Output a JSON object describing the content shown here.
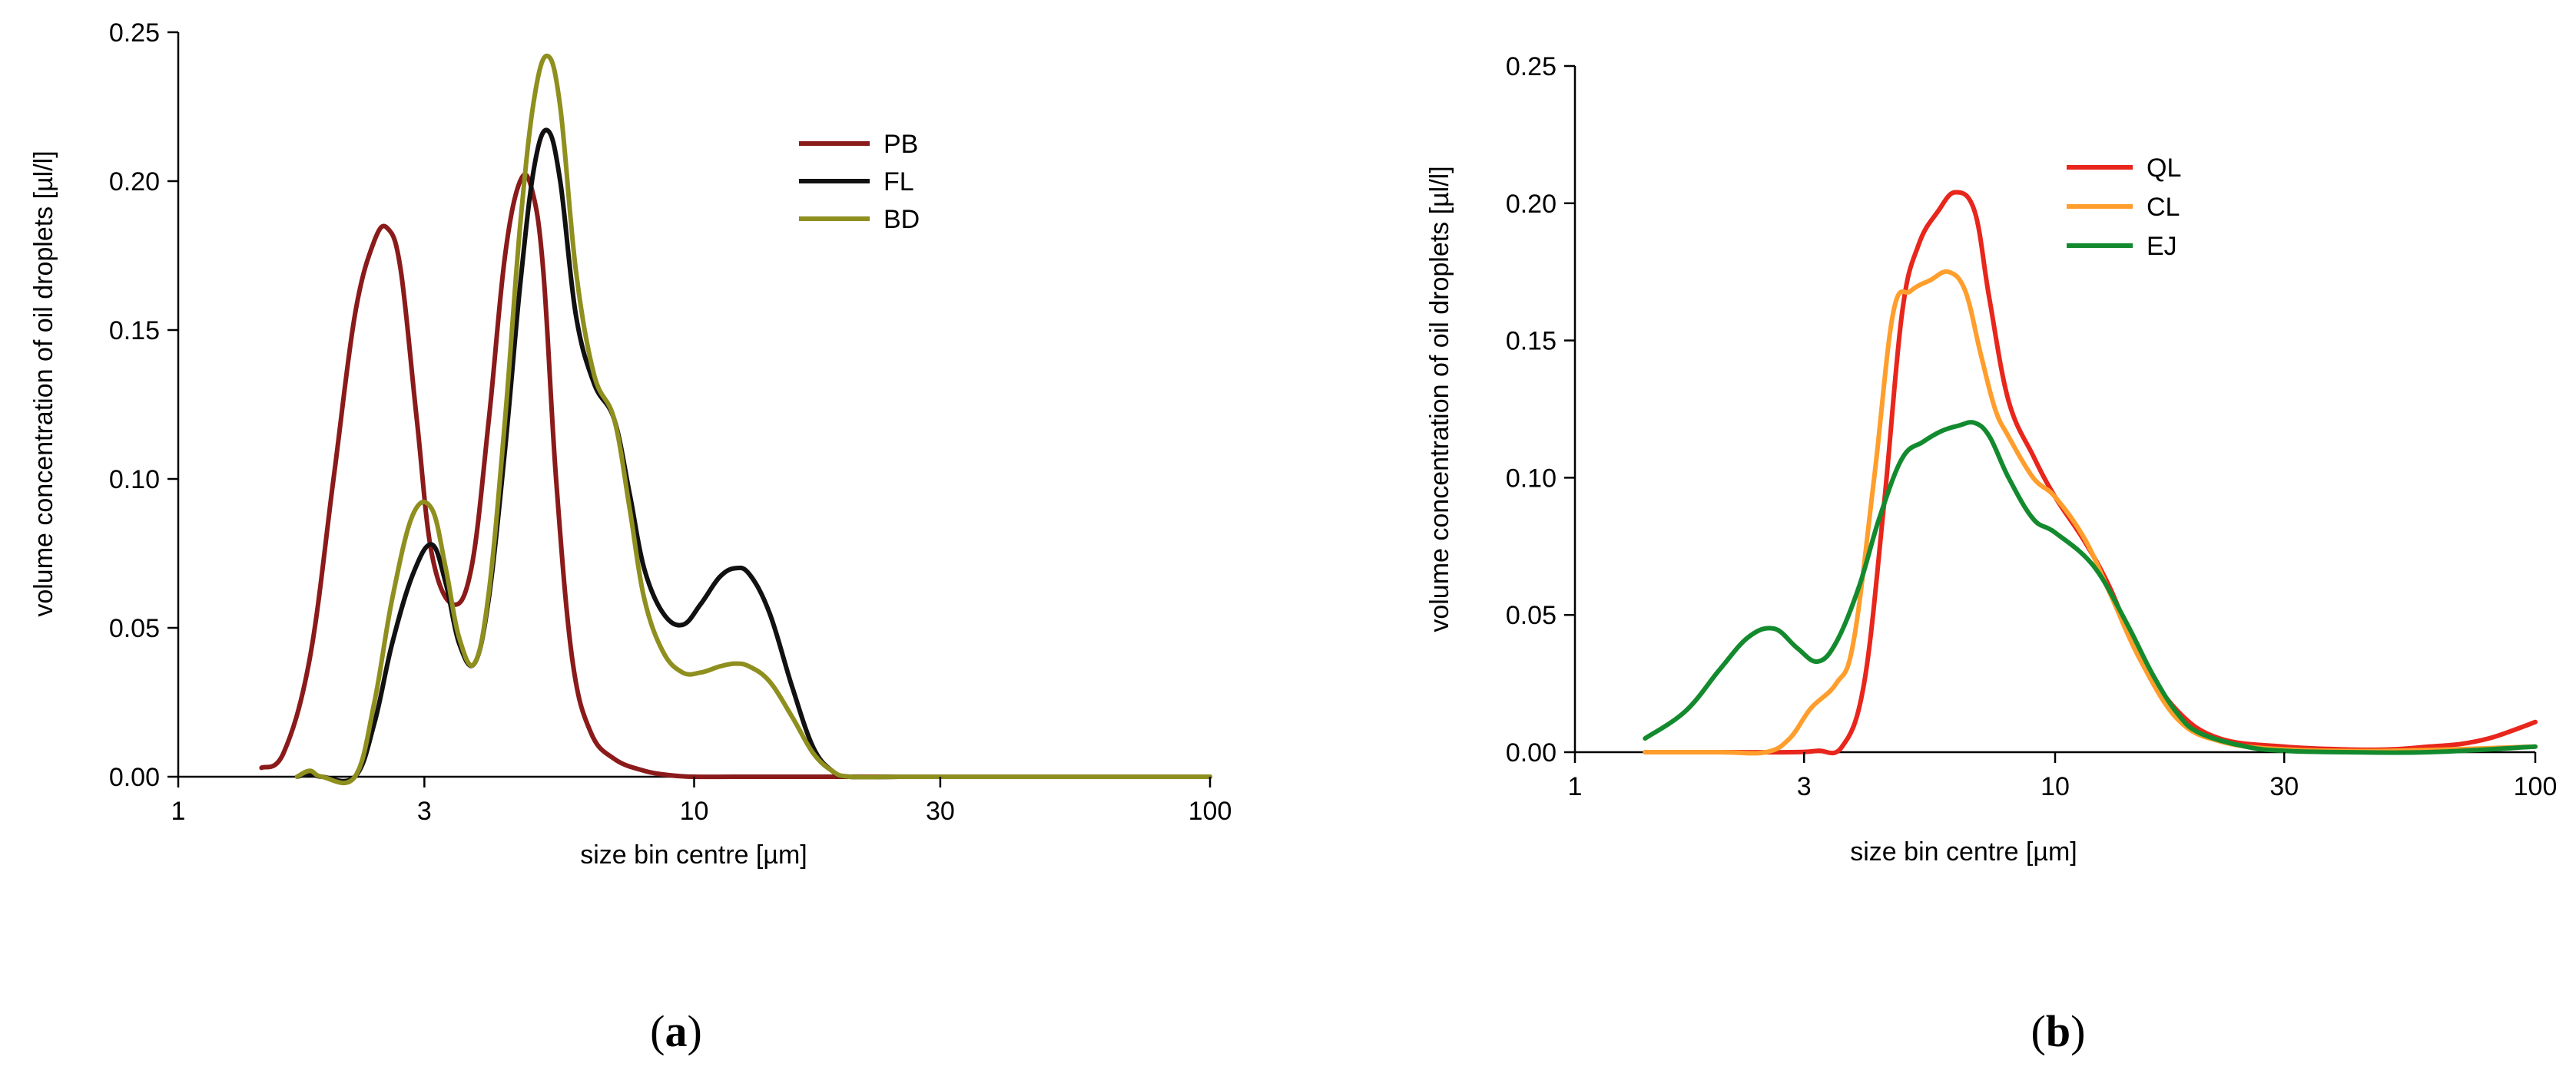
{
  "chart_data": [
    {
      "type": "line",
      "panel_label": "a",
      "xlabel": "size bin centre [µm]",
      "ylabel": "volume concentration of oil droplets [µl/l]",
      "xscale": "log",
      "xlim": [
        1,
        100
      ],
      "ylim": [
        0,
        0.25
      ],
      "x_ticks": [
        1,
        3,
        10,
        30,
        100
      ],
      "x_tick_labels": [
        "1",
        "3",
        "10",
        "30",
        "100"
      ],
      "y_ticks": [
        0,
        0.05,
        0.1,
        0.15,
        0.2,
        0.25
      ],
      "y_tick_labels": [
        "0.00",
        "0.05",
        "0.10",
        "0.15",
        "0.20",
        "0.25"
      ],
      "grid": false,
      "legend_position": "top-right",
      "series": [
        {
          "name": "PB",
          "color": "#8b1a1a",
          "x": [
            1.45,
            1.6,
            1.8,
            2.0,
            2.2,
            2.4,
            2.55,
            2.7,
            2.9,
            3.1,
            3.4,
            3.7,
            4.0,
            4.3,
            4.6,
            4.85,
            5.1,
            5.4,
            5.8,
            6.3,
            7.0,
            8.0,
            9.0,
            10.0,
            12.0,
            15.0,
            20.0,
            30.0,
            50.0,
            100.0
          ],
          "y": [
            0.003,
            0.008,
            0.04,
            0.1,
            0.155,
            0.18,
            0.184,
            0.17,
            0.12,
            0.075,
            0.058,
            0.07,
            0.12,
            0.175,
            0.2,
            0.197,
            0.17,
            0.1,
            0.04,
            0.015,
            0.006,
            0.002,
            0.0005,
            0.0,
            0.0,
            0.0,
            0.0,
            0.0,
            0.0,
            0.0
          ]
        },
        {
          "name": "FL",
          "color": "#111111",
          "x": [
            1.7,
            1.8,
            1.9,
            2.2,
            2.4,
            2.6,
            2.85,
            3.1,
            3.3,
            3.5,
            3.75,
            4.0,
            4.3,
            4.6,
            4.9,
            5.2,
            5.5,
            5.9,
            6.4,
            7.0,
            7.5,
            8.0,
            8.7,
            9.5,
            10.3,
            11.2,
            12.0,
            12.8,
            14.0,
            15.5,
            17.0,
            18.5,
            20.0,
            25.0,
            30.0,
            50.0,
            100.0
          ],
          "y": [
            0.0,
            0.001,
            0.0,
            0.0,
            0.018,
            0.045,
            0.068,
            0.078,
            0.065,
            0.045,
            0.038,
            0.06,
            0.11,
            0.165,
            0.205,
            0.217,
            0.2,
            0.155,
            0.132,
            0.12,
            0.095,
            0.07,
            0.055,
            0.051,
            0.058,
            0.067,
            0.07,
            0.068,
            0.055,
            0.03,
            0.01,
            0.002,
            0.0,
            0.0,
            0.0,
            0.0,
            0.0
          ]
        },
        {
          "name": "BD",
          "color": "#8f8f1f",
          "x": [
            1.7,
            1.8,
            1.9,
            2.2,
            2.4,
            2.6,
            2.85,
            3.1,
            3.3,
            3.5,
            3.75,
            4.0,
            4.3,
            4.6,
            4.9,
            5.2,
            5.5,
            5.9,
            6.4,
            7.0,
            7.5,
            8.0,
            8.7,
            9.5,
            10.3,
            11.2,
            12.0,
            12.8,
            14.0,
            15.5,
            17.0,
            18.5,
            20.0,
            25.0,
            30.0,
            50.0,
            100.0
          ],
          "y": [
            0.0,
            0.002,
            0.0,
            0.0,
            0.025,
            0.06,
            0.088,
            0.09,
            0.07,
            0.047,
            0.038,
            0.062,
            0.12,
            0.185,
            0.228,
            0.242,
            0.225,
            0.17,
            0.135,
            0.12,
            0.09,
            0.06,
            0.042,
            0.035,
            0.035,
            0.037,
            0.038,
            0.037,
            0.032,
            0.02,
            0.008,
            0.002,
            0.0,
            0.0,
            0.0,
            0.0,
            0.0
          ]
        }
      ]
    },
    {
      "type": "line",
      "panel_label": "b",
      "xlabel": "size bin centre [µm]",
      "ylabel": "volume concentration of oil droplets [µl/l]",
      "xscale": "log",
      "xlim": [
        1,
        100
      ],
      "ylim": [
        0,
        0.25
      ],
      "x_ticks": [
        1,
        3,
        10,
        30,
        100
      ],
      "x_tick_labels": [
        "1",
        "3",
        "10",
        "30",
        "100"
      ],
      "y_ticks": [
        0,
        0.05,
        0.1,
        0.15,
        0.2,
        0.25
      ],
      "y_tick_labels": [
        "0.00",
        "0.05",
        "0.10",
        "0.15",
        "0.20",
        "0.25"
      ],
      "grid": false,
      "legend_position": "top-right",
      "series": [
        {
          "name": "QL",
          "color": "#e8261c",
          "x": [
            1.4,
            2.0,
            2.8,
            3.2,
            3.6,
            4.0,
            4.4,
            4.8,
            5.2,
            5.7,
            6.2,
            6.8,
            7.3,
            8.0,
            9.0,
            10.0,
            11.5,
            13.0,
            15.0,
            18.0,
            22.0,
            30.0,
            40.0,
            50.0,
            60.0,
            70.0,
            80.0,
            90.0,
            100.0
          ],
          "y": [
            0.0,
            0.0,
            0.0,
            0.0005,
            0.002,
            0.025,
            0.09,
            0.16,
            0.185,
            0.197,
            0.204,
            0.197,
            0.165,
            0.128,
            0.108,
            0.093,
            0.077,
            0.06,
            0.035,
            0.015,
            0.005,
            0.002,
            0.001,
            0.001,
            0.002,
            0.003,
            0.005,
            0.008,
            0.011
          ]
        },
        {
          "name": "CL",
          "color": "#ff9e2c",
          "x": [
            1.4,
            2.0,
            2.5,
            2.8,
            3.1,
            3.5,
            3.8,
            4.2,
            4.6,
            5.0,
            5.5,
            6.0,
            6.5,
            7.0,
            7.5,
            8.0,
            9.0,
            10.0,
            11.5,
            13.0,
            15.0,
            18.0,
            22.0,
            30.0,
            50.0,
            100.0
          ],
          "y": [
            0.0,
            0.0,
            0.0,
            0.005,
            0.016,
            0.025,
            0.04,
            0.1,
            0.16,
            0.168,
            0.172,
            0.175,
            0.168,
            0.145,
            0.125,
            0.115,
            0.1,
            0.093,
            0.078,
            0.058,
            0.034,
            0.012,
            0.004,
            0.001,
            0.0005,
            0.002
          ]
        },
        {
          "name": "EJ",
          "color": "#138a2e",
          "x": [
            1.4,
            1.7,
            2.0,
            2.3,
            2.6,
            2.9,
            3.2,
            3.5,
            3.9,
            4.3,
            4.8,
            5.3,
            5.8,
            6.3,
            6.8,
            7.3,
            8.0,
            9.0,
            10.0,
            12.0,
            14.0,
            16.0,
            18.0,
            20.0,
            25.0,
            30.0,
            40.0,
            60.0,
            100.0
          ],
          "y": [
            0.005,
            0.015,
            0.03,
            0.042,
            0.045,
            0.038,
            0.033,
            0.04,
            0.06,
            0.085,
            0.107,
            0.113,
            0.117,
            0.119,
            0.12,
            0.115,
            0.1,
            0.085,
            0.08,
            0.068,
            0.048,
            0.028,
            0.014,
            0.007,
            0.002,
            0.0005,
            0.0,
            0.0,
            0.002
          ]
        }
      ]
    }
  ]
}
